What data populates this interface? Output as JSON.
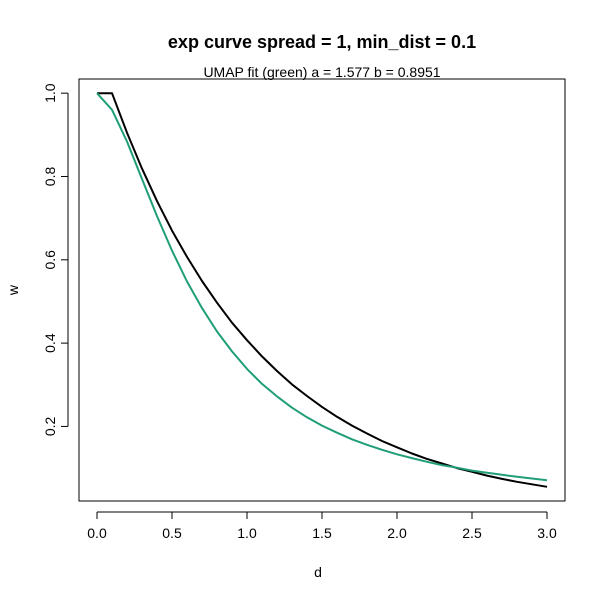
{
  "chart_data": {
    "type": "line",
    "title": "exp curve spread = 1, min_dist = 0.1",
    "subtitle": "UMAP fit (green) a = 1.577 b = 0.8951",
    "xlabel": "d",
    "ylabel": "w",
    "xlim": [
      -0.12,
      3.12
    ],
    "ylim": [
      0.021,
      1.034
    ],
    "x_ticks": [
      0.0,
      0.5,
      1.0,
      1.5,
      2.0,
      2.5,
      3.0
    ],
    "x_tick_labels": [
      "0.0",
      "0.5",
      "1.0",
      "1.5",
      "2.0",
      "2.5",
      "3.0"
    ],
    "y_ticks": [
      0.2,
      0.4,
      0.6,
      0.8,
      1.0
    ],
    "y_tick_labels": [
      "0.2",
      "0.4",
      "0.6",
      "0.8",
      "1.0"
    ],
    "grid": false,
    "legend": "none",
    "series": [
      {
        "color": "#000000",
        "x": [
          0,
          0.1,
          0.2,
          0.3,
          0.4,
          0.5,
          0.6,
          0.7,
          0.8,
          0.9,
          1.0,
          1.1,
          1.2,
          1.3,
          1.4,
          1.5,
          1.6,
          1.7,
          1.8,
          1.9,
          2.0,
          2.1,
          2.2,
          2.3,
          2.4,
          2.5,
          2.6,
          2.7,
          2.8,
          2.9,
          3.0
        ],
        "y": [
          1.0,
          1.0,
          0.905,
          0.819,
          0.741,
          0.67,
          0.607,
          0.549,
          0.497,
          0.449,
          0.407,
          0.368,
          0.333,
          0.301,
          0.273,
          0.247,
          0.223,
          0.202,
          0.183,
          0.165,
          0.15,
          0.135,
          0.122,
          0.111,
          0.1,
          0.091,
          0.082,
          0.074,
          0.067,
          0.061,
          0.055
        ]
      },
      {
        "color": "#1f9e78",
        "x": [
          0,
          0.1,
          0.2,
          0.3,
          0.4,
          0.5,
          0.6,
          0.7,
          0.8,
          0.9,
          1.0,
          1.1,
          1.2,
          1.3,
          1.4,
          1.5,
          1.6,
          1.7,
          1.8,
          1.9,
          2.0,
          2.1,
          2.2,
          2.3,
          2.4,
          2.5,
          2.6,
          2.7,
          2.8,
          2.9,
          3.0
        ],
        "y": [
          1.0,
          0.96,
          0.884,
          0.794,
          0.705,
          0.622,
          0.548,
          0.484,
          0.428,
          0.38,
          0.338,
          0.302,
          0.272,
          0.245,
          0.222,
          0.202,
          0.185,
          0.169,
          0.156,
          0.144,
          0.133,
          0.124,
          0.115,
          0.107,
          0.101,
          0.094,
          0.089,
          0.084,
          0.079,
          0.075,
          0.071
        ]
      }
    ]
  }
}
